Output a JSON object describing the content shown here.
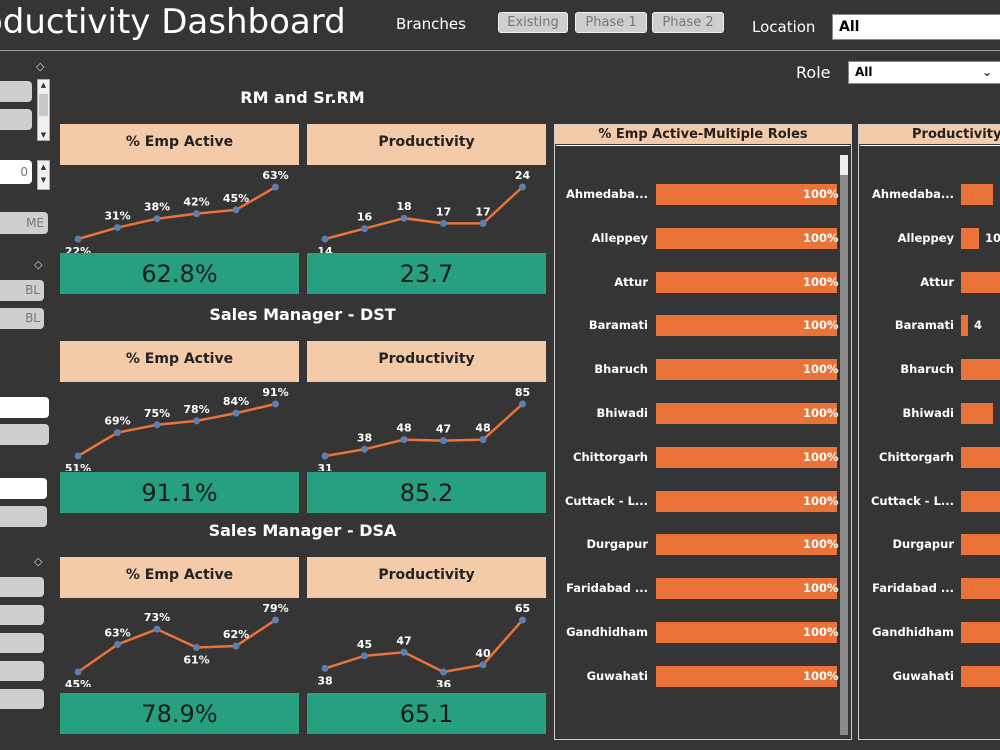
{
  "header": {
    "title": "oductivity Dashboard",
    "branches_label": "Branches",
    "branch_buttons": [
      "Existing",
      "Phase 1",
      "Phase 2"
    ],
    "location_label": "Location",
    "location_value": "All",
    "role_label": "Role",
    "role_value": "All"
  },
  "slicer_panel": {
    "spinner_value": "0",
    "button_text_me": "ME",
    "button_text_bl1": "BL",
    "button_text_bl2": "BL"
  },
  "sections": [
    {
      "title": "RM and Sr.RM",
      "emp_active": {
        "header": "% Emp Active",
        "labels": [
          "22%",
          "31%",
          "38%",
          "42%",
          "45%",
          "63%"
        ],
        "values": [
          22,
          31,
          38,
          42,
          45,
          63
        ],
        "kpi": "62.8%"
      },
      "productivity": {
        "header": "Productivity",
        "labels": [
          "14",
          "16",
          "18",
          "17",
          "17",
          "24"
        ],
        "values": [
          14,
          16,
          18,
          17,
          17,
          24
        ],
        "kpi": "23.7"
      }
    },
    {
      "title": "Sales Manager - DST",
      "emp_active": {
        "header": "% Emp Active",
        "labels": [
          "51%",
          "69%",
          "75%",
          "78%",
          "84%",
          "91%"
        ],
        "values": [
          51,
          69,
          75,
          78,
          84,
          91
        ],
        "kpi": "91.1%"
      },
      "productivity": {
        "header": "Productivity",
        "labels": [
          "31",
          "38",
          "48",
          "47",
          "48",
          "85"
        ],
        "values": [
          31,
          38,
          48,
          47,
          48,
          85
        ],
        "kpi": "85.2"
      }
    },
    {
      "title": "Sales Manager -  DSA",
      "emp_active": {
        "header": "% Emp Active",
        "labels": [
          "45%",
          "63%",
          "73%",
          "61%",
          "62%",
          "79%"
        ],
        "values": [
          45,
          63,
          73,
          61,
          62,
          79
        ],
        "kpi": "78.9%"
      },
      "productivity": {
        "header": "Productivity",
        "labels": [
          "38",
          "45",
          "47",
          "36",
          "40",
          "65"
        ],
        "values": [
          38,
          45,
          47,
          36,
          40,
          65
        ],
        "kpi": "65.1"
      }
    }
  ],
  "emp_active_multiple_roles": {
    "header": "% Emp Active-Multiple Roles",
    "rows": [
      {
        "city": "Ahmedaba...",
        "value": "100%"
      },
      {
        "city": "Alleppey",
        "value": "100%"
      },
      {
        "city": "Attur",
        "value": "100%"
      },
      {
        "city": "Baramati",
        "value": "100%"
      },
      {
        "city": "Bharuch",
        "value": "100%"
      },
      {
        "city": "Bhiwadi",
        "value": "100%"
      },
      {
        "city": "Chittorgarh",
        "value": "100%"
      },
      {
        "city": "Cuttack - L...",
        "value": "100%"
      },
      {
        "city": "Durgapur",
        "value": "100%"
      },
      {
        "city": "Faridabad ...",
        "value": "100%"
      },
      {
        "city": "Gandhidham",
        "value": "100%"
      },
      {
        "city": "Guwahati",
        "value": "100%"
      }
    ]
  },
  "productivity_multiple_roles": {
    "header": "Productivity -",
    "rows": [
      {
        "city": "Ahmedaba...",
        "value": "",
        "fraction": 0.8
      },
      {
        "city": "Alleppey",
        "value": "10",
        "fraction": 0.45
      },
      {
        "city": "Attur",
        "value": "",
        "fraction": 1.0
      },
      {
        "city": "Baramati",
        "value": "4",
        "fraction": 0.18
      },
      {
        "city": "Bharuch",
        "value": "",
        "fraction": 1.0
      },
      {
        "city": "Bhiwadi",
        "value": "",
        "fraction": 0.8
      },
      {
        "city": "Chittorgarh",
        "value": "",
        "fraction": 1.0
      },
      {
        "city": "Cuttack - L...",
        "value": "",
        "fraction": 1.0
      },
      {
        "city": "Durgapur",
        "value": "",
        "fraction": 1.0
      },
      {
        "city": "Faridabad ...",
        "value": "",
        "fraction": 1.0
      },
      {
        "city": "Gandhidham",
        "value": "",
        "fraction": 1.0
      },
      {
        "city": "Guwahati",
        "value": "",
        "fraction": 1.0
      }
    ]
  },
  "colors": {
    "accent_orange": "#e97338",
    "kpi_green": "#27a07f",
    "header_peach": "#f4cba9",
    "line_marker": "#5b7fb0"
  }
}
